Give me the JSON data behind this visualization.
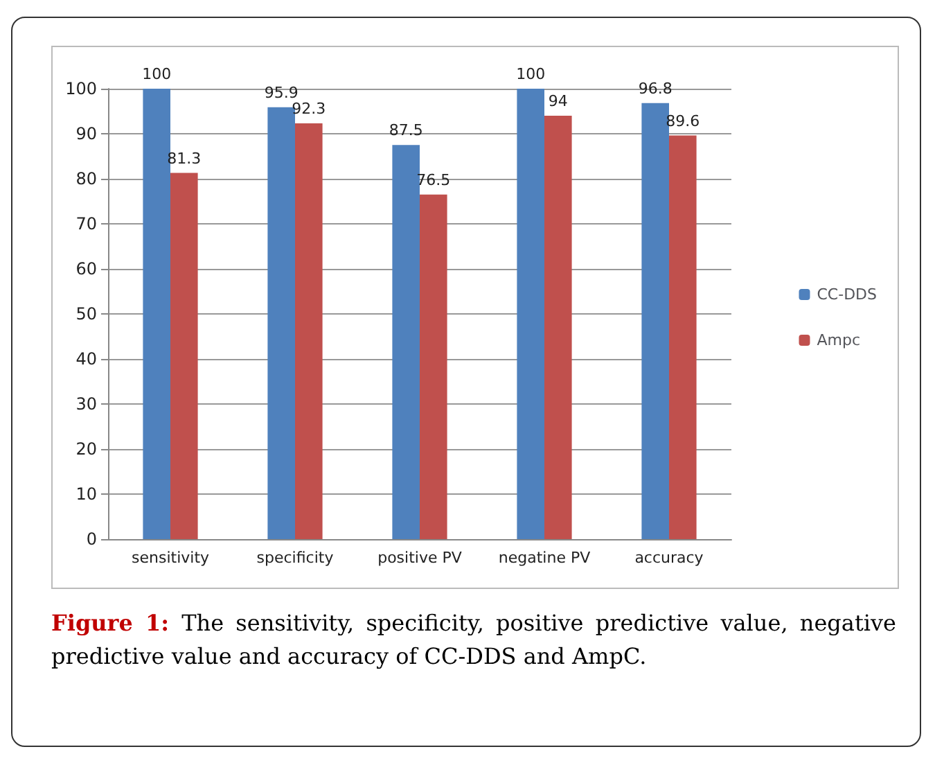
{
  "chart_data": {
    "type": "bar",
    "categories": [
      "sensitivity",
      "specificity",
      "positive PV",
      "negatine PV",
      "accuracy"
    ],
    "series": [
      {
        "name": "CC-DDS",
        "color": "#4f81bd",
        "values": [
          100,
          95.9,
          87.5,
          100,
          96.8
        ]
      },
      {
        "name": "Ampc",
        "color": "#c0504d",
        "values": [
          81.3,
          92.3,
          76.5,
          94,
          89.6
        ]
      }
    ],
    "ylim": [
      0,
      100
    ],
    "yticks": [
      0,
      10,
      20,
      30,
      40,
      50,
      60,
      70,
      80,
      90,
      100
    ],
    "grid": "y",
    "legend": "right",
    "data_labels": true,
    "annotations": [
      "Figure 1:",
      "The sensitivity, specificity, positive predictive value, negative predictive value and accuracy of CC-DDS and AmpC."
    ]
  }
}
